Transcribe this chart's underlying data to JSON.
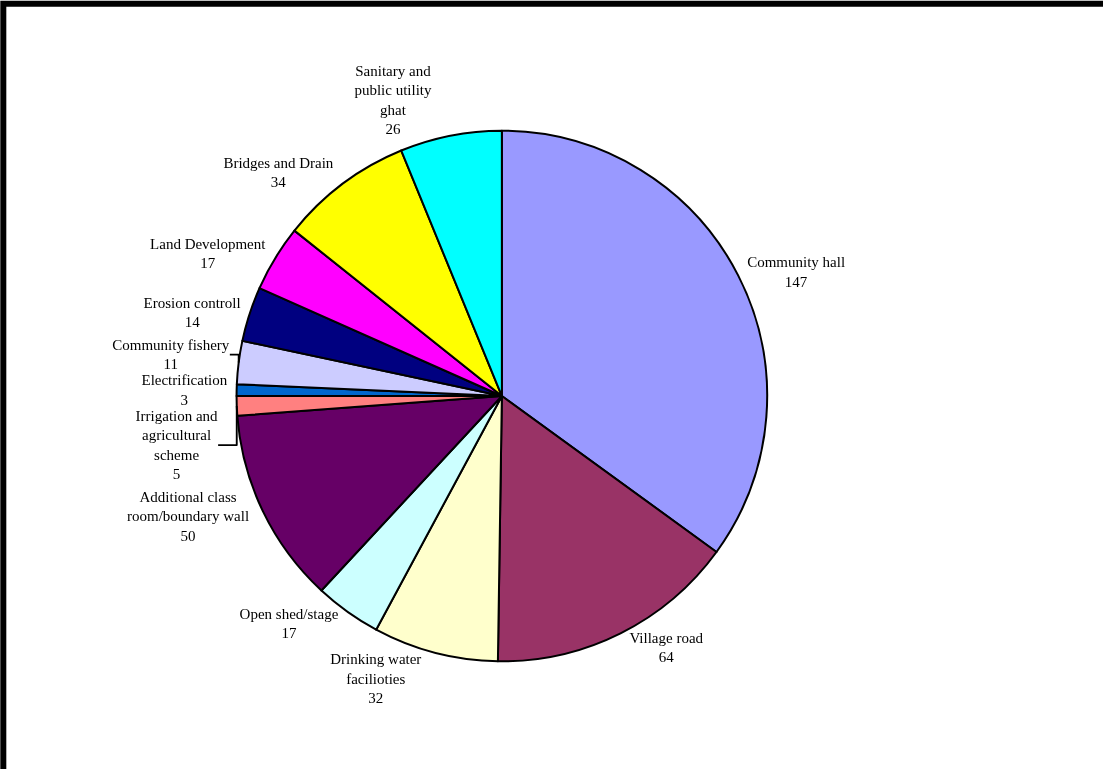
{
  "chart_data": {
    "type": "pie",
    "categories": [
      "Community hall",
      "Village road",
      "Drinking water facilioties",
      "Open shed/stage",
      "Additional class room/boundary wall",
      "Irrigation and agricultural scheme",
      "Electrification",
      "Community fishery",
      "Erosion controll",
      "Land Development",
      "Bridges and Drain",
      "Sanitary and public utility ghat"
    ],
    "values": [
      147,
      64,
      32,
      17,
      50,
      5,
      3,
      11,
      14,
      17,
      34,
      26
    ],
    "colors": [
      "#9999ff",
      "#993366",
      "#ffffcc",
      "#ccffff",
      "#660066",
      "#ff8080",
      "#0066cc",
      "#ccccff",
      "#000080",
      "#ff00ff",
      "#ffff00",
      "#00ffff"
    ],
    "data_labels": true,
    "legend": false
  }
}
